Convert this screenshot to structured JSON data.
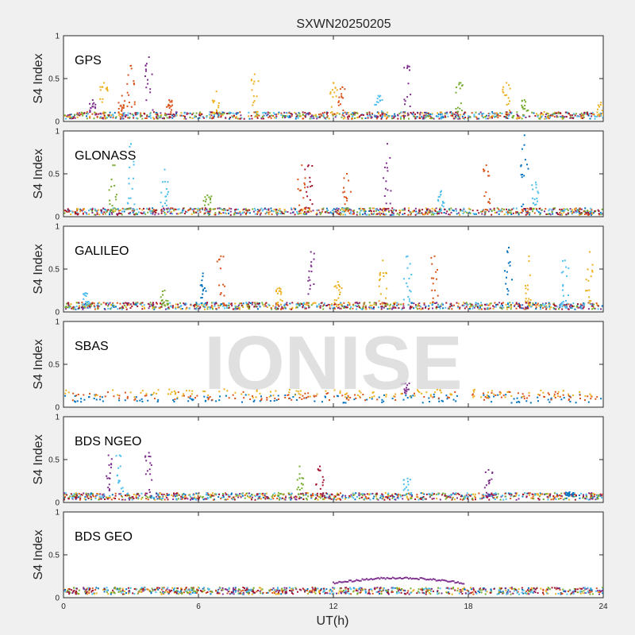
{
  "chart_data": {
    "type": "scatter",
    "title": "SXWN20250205",
    "watermark": "IONISE",
    "xlabel": "UT(h)",
    "xlim": [
      0,
      24
    ],
    "xticks": [
      "0",
      "6",
      "12",
      "18",
      "24"
    ],
    "ylabel": "S4 Index",
    "ylim": [
      0,
      1
    ],
    "yticks": [
      "0",
      "0.5",
      "1"
    ],
    "grid": false,
    "colors": [
      "#0072bd",
      "#d95319",
      "#edb120",
      "#7e2f8e",
      "#77ac30",
      "#4dbeee",
      "#a2142f"
    ],
    "panels": [
      {
        "name": "GPS",
        "baseline": 0.07,
        "spikes": [
          {
            "t": 1.3,
            "peak": 0.25,
            "c": 3
          },
          {
            "t": 1.8,
            "peak": 0.45,
            "c": 2
          },
          {
            "t": 2.6,
            "peak": 0.3,
            "c": 1
          },
          {
            "t": 3.0,
            "peak": 0.65,
            "c": 1
          },
          {
            "t": 3.8,
            "peak": 0.75,
            "c": 3
          },
          {
            "t": 4.7,
            "peak": 0.25,
            "c": 1
          },
          {
            "t": 6.8,
            "peak": 0.35,
            "c": 2
          },
          {
            "t": 8.5,
            "peak": 0.55,
            "c": 2
          },
          {
            "t": 12.0,
            "peak": 0.45,
            "c": 2
          },
          {
            "t": 12.4,
            "peak": 0.4,
            "c": 1
          },
          {
            "t": 14.0,
            "peak": 0.3,
            "c": 5
          },
          {
            "t": 15.3,
            "peak": 0.65,
            "c": 3
          },
          {
            "t": 17.6,
            "peak": 0.45,
            "c": 4
          },
          {
            "t": 19.7,
            "peak": 0.45,
            "c": 2
          },
          {
            "t": 20.5,
            "peak": 0.25,
            "c": 4
          },
          {
            "t": 23.9,
            "peak": 0.22,
            "c": 2
          }
        ]
      },
      {
        "name": "GLONASS",
        "baseline": 0.06,
        "spikes": [
          {
            "t": 2.2,
            "peak": 0.6,
            "c": 4
          },
          {
            "t": 3.0,
            "peak": 0.85,
            "c": 5
          },
          {
            "t": 4.5,
            "peak": 0.55,
            "c": 5
          },
          {
            "t": 6.4,
            "peak": 0.25,
            "c": 4
          },
          {
            "t": 10.6,
            "peak": 0.6,
            "c": 1
          },
          {
            "t": 10.9,
            "peak": 0.6,
            "c": 6
          },
          {
            "t": 12.6,
            "peak": 0.5,
            "c": 1
          },
          {
            "t": 14.4,
            "peak": 0.85,
            "c": 3
          },
          {
            "t": 16.8,
            "peak": 0.3,
            "c": 5
          },
          {
            "t": 18.8,
            "peak": 0.6,
            "c": 1
          },
          {
            "t": 20.5,
            "peak": 0.95,
            "c": 0
          },
          {
            "t": 21.0,
            "peak": 0.4,
            "c": 5
          }
        ]
      },
      {
        "name": "GALILEO",
        "baseline": 0.07,
        "spikes": [
          {
            "t": 1.0,
            "peak": 0.22,
            "c": 5
          },
          {
            "t": 4.5,
            "peak": 0.25,
            "c": 4
          },
          {
            "t": 6.2,
            "peak": 0.45,
            "c": 0
          },
          {
            "t": 7.0,
            "peak": 0.65,
            "c": 1
          },
          {
            "t": 9.6,
            "peak": 0.28,
            "c": 2
          },
          {
            "t": 11.0,
            "peak": 0.7,
            "c": 3
          },
          {
            "t": 12.2,
            "peak": 0.35,
            "c": 2
          },
          {
            "t": 14.2,
            "peak": 0.6,
            "c": 2
          },
          {
            "t": 15.3,
            "peak": 0.65,
            "c": 5
          },
          {
            "t": 16.5,
            "peak": 0.65,
            "c": 1
          },
          {
            "t": 19.8,
            "peak": 0.75,
            "c": 0
          },
          {
            "t": 20.7,
            "peak": 0.65,
            "c": 2
          },
          {
            "t": 22.3,
            "peak": 0.6,
            "c": 5
          },
          {
            "t": 23.4,
            "peak": 0.7,
            "c": 2
          }
        ]
      },
      {
        "name": "SBAS",
        "baseline": 0.13,
        "spikes": [
          {
            "t": 15.2,
            "peak": 0.28,
            "c": 3
          }
        ]
      },
      {
        "name": "BDS NGEO",
        "baseline": 0.07,
        "spikes": [
          {
            "t": 2.0,
            "peak": 0.55,
            "c": 3
          },
          {
            "t": 2.5,
            "peak": 0.55,
            "c": 5
          },
          {
            "t": 3.8,
            "peak": 0.58,
            "c": 3
          },
          {
            "t": 10.5,
            "peak": 0.42,
            "c": 4
          },
          {
            "t": 11.4,
            "peak": 0.42,
            "c": 6
          },
          {
            "t": 15.3,
            "peak": 0.28,
            "c": 5
          },
          {
            "t": 18.9,
            "peak": 0.38,
            "c": 3
          },
          {
            "t": 22.5,
            "peak": 0.12,
            "c": 0
          }
        ]
      },
      {
        "name": "BDS GEO",
        "baseline": 0.08,
        "spikes": [],
        "arc": {
          "start": 12.0,
          "end": 17.8,
          "peak": 0.23,
          "base": 0.17,
          "c": 3
        }
      }
    ]
  }
}
